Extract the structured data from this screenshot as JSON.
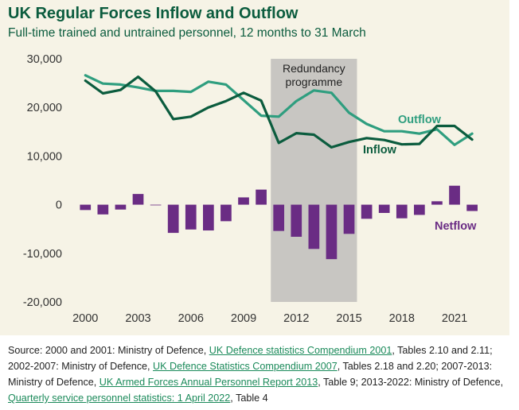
{
  "chart_data": {
    "type": "line",
    "title": "UK Regular Forces Inflow and Outflow",
    "subtitle": "Full-time trained and untrained personnel, 12 months to 31 March",
    "x": [
      2000,
      2001,
      2002,
      2003,
      2004,
      2005,
      2006,
      2007,
      2008,
      2009,
      2010,
      2011,
      2012,
      2013,
      2014,
      2015,
      2016,
      2017,
      2018,
      2019,
      2020,
      2021,
      2022
    ],
    "xticks": [
      "2000",
      "2003",
      "2006",
      "2009",
      "2012",
      "2015",
      "2018",
      "2021"
    ],
    "xlim": [
      1999.4,
      2022.9
    ],
    "ylim": [
      -20000,
      30000
    ],
    "yticks": [
      -20000,
      -10000,
      0,
      10000,
      20000,
      30000
    ],
    "ytick_labels": [
      "-20,000",
      "-10,000",
      "0",
      "10,000",
      "20,000",
      "30,000"
    ],
    "grid": false,
    "colors": {
      "outflow": "#2f9e7f",
      "inflow": "#0b5c3e",
      "netflow": "#6a2c84",
      "shade": "#c8c6c2",
      "panel": "#f6f3e6",
      "title": "#0b5c3e"
    },
    "series": [
      {
        "name": "Outflow",
        "kind": "line",
        "values": [
          26600,
          24900,
          24700,
          24100,
          23400,
          23400,
          23200,
          25300,
          24700,
          21500,
          18300,
          18100,
          21300,
          23500,
          23000,
          18900,
          16600,
          15100,
          15100,
          14600,
          15500,
          12300,
          14600
        ]
      },
      {
        "name": "Inflow",
        "kind": "line",
        "values": [
          25500,
          22900,
          23600,
          26300,
          23300,
          17600,
          18100,
          20000,
          21300,
          23000,
          21400,
          12700,
          14700,
          14400,
          11800,
          12900,
          13700,
          13300,
          12400,
          12500,
          16200,
          16200,
          13400
        ]
      },
      {
        "name": "Netflow",
        "kind": "bar",
        "values": [
          -1100,
          -2000,
          -1000,
          2200,
          -100,
          -5800,
          -5100,
          -5300,
          -3400,
          1500,
          3100,
          -5400,
          -6600,
          -9100,
          -11200,
          -6000,
          -2900,
          -1700,
          -2800,
          -2100,
          700,
          3900,
          -1300
        ]
      }
    ],
    "annotations": [
      {
        "text_lines": [
          "Redundancy",
          "programme"
        ],
        "x_range": [
          2010.55,
          2015.45
        ]
      }
    ]
  },
  "source": {
    "prefix": "Source: 2000 and 2001: Ministry of Defence, ",
    "link1": "UK Defence statistics Compendium 2001",
    "mid1": ", Tables 2.10 and 2.11; 2002-2007: Ministry of Defence, ",
    "link2": "UK Defence Statistics Compendium 2007",
    "mid2": ", Tables 2.18 and 2.20; 2007-2013: Ministry of Defence, ",
    "link3": "UK Armed Forces Annual Personnel Report 2013",
    "mid3": ", Table 9; 2013-2022: Ministry of Defence, ",
    "link4": "Quarterly service personnel statistics: 1 April 2022",
    "suffix": ", Table 4"
  }
}
